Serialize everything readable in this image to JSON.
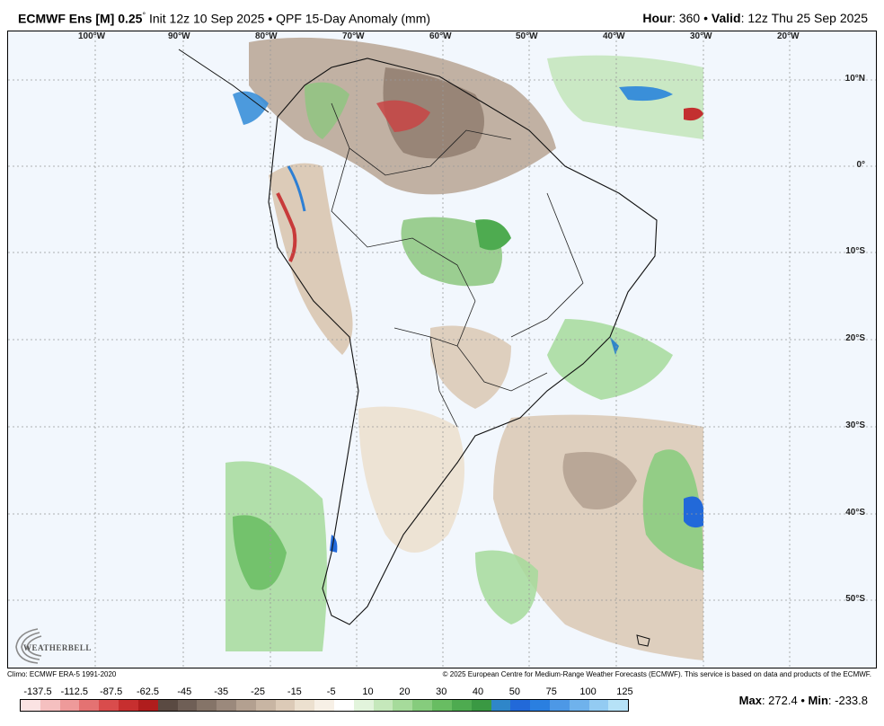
{
  "header": {
    "model": "ECMWF Ens [M] 0.25",
    "degree": "°",
    "init": "Init 12z 10 Sep 2025",
    "bullet": "•",
    "product": "QPF 15-Day Anomaly (mm)",
    "hour_label": "Hour",
    "hour_value": ": 360",
    "valid_label": "Valid",
    "valid_value": ": 12z Thu 25 Sep 2025"
  },
  "map": {
    "lon_labels": [
      "100°W",
      "90°W",
      "80°W",
      "70°W",
      "60°W",
      "50°W",
      "40°W",
      "30°W",
      "20°W"
    ],
    "lat_labels": [
      "10°N",
      "0°",
      "10°S",
      "20°S",
      "30°S",
      "40°S",
      "50°S"
    ]
  },
  "logo": {
    "text": "WEATHERBELL"
  },
  "footer": {
    "climo": "Climo: ECMWF ERA-5 1991-2020",
    "copyright": "© 2025 European Centre for Medium-Range Weather Forecasts (ECMWF). This service is based on data and products of the ECMWF."
  },
  "colorbar": {
    "labels": [
      "-137.5",
      "-112.5",
      "-87.5",
      "-62.5",
      "-45",
      "-35",
      "-25",
      "-15",
      "-5",
      "10",
      "20",
      "30",
      "40",
      "50",
      "75",
      "100",
      "125"
    ],
    "colors": [
      "#fbe3e3",
      "#f5c0c0",
      "#ee9a9a",
      "#e47272",
      "#d94c4c",
      "#c72f2f",
      "#b01d1d",
      "#5a4a42",
      "#6f5f56",
      "#857468",
      "#9b897c",
      "#b3a090",
      "#c8b5a3",
      "#dccab7",
      "#ece0cf",
      "#f7f0e6",
      "#ffffff",
      "#e2f4dc",
      "#c5e8bb",
      "#a6db9b",
      "#86cc7d",
      "#68bd62",
      "#4eab50",
      "#3a9943",
      "#2f86c9",
      "#2269d9",
      "#2a7fe0",
      "#4d98e6",
      "#6fb2ec",
      "#93cbf2",
      "#b6e2f7"
    ]
  },
  "stats": {
    "max_label": "Max",
    "max_value": ": 272.4",
    "min_label": "Min",
    "min_value": ": -233.8"
  }
}
